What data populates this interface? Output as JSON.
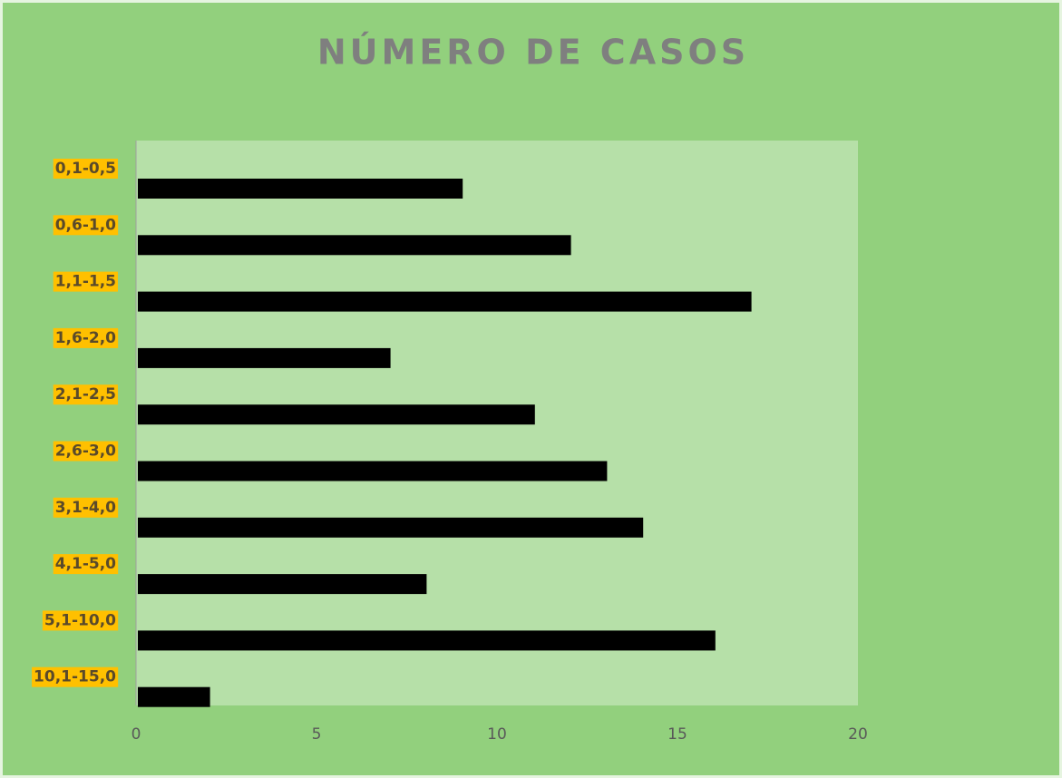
{
  "chart_data": {
    "type": "bar",
    "orientation": "horizontal",
    "title": "NÚMERO DE CASOS",
    "categories": [
      "0,1-0,5",
      "0,6-1,0",
      "1,1-1,5",
      "1,6-2,0",
      "2,1-2,5",
      "2,6-3,0",
      "3,1-4,0",
      "4,1-5,0",
      "5,1-10,0",
      "10,1-15,0"
    ],
    "values": [
      9,
      12,
      17,
      7,
      11,
      13,
      14,
      8,
      16,
      2
    ],
    "color": "#000000",
    "xlim": [
      0,
      20
    ],
    "xticks": [
      0,
      5,
      10,
      15,
      20
    ],
    "grid": false
  }
}
